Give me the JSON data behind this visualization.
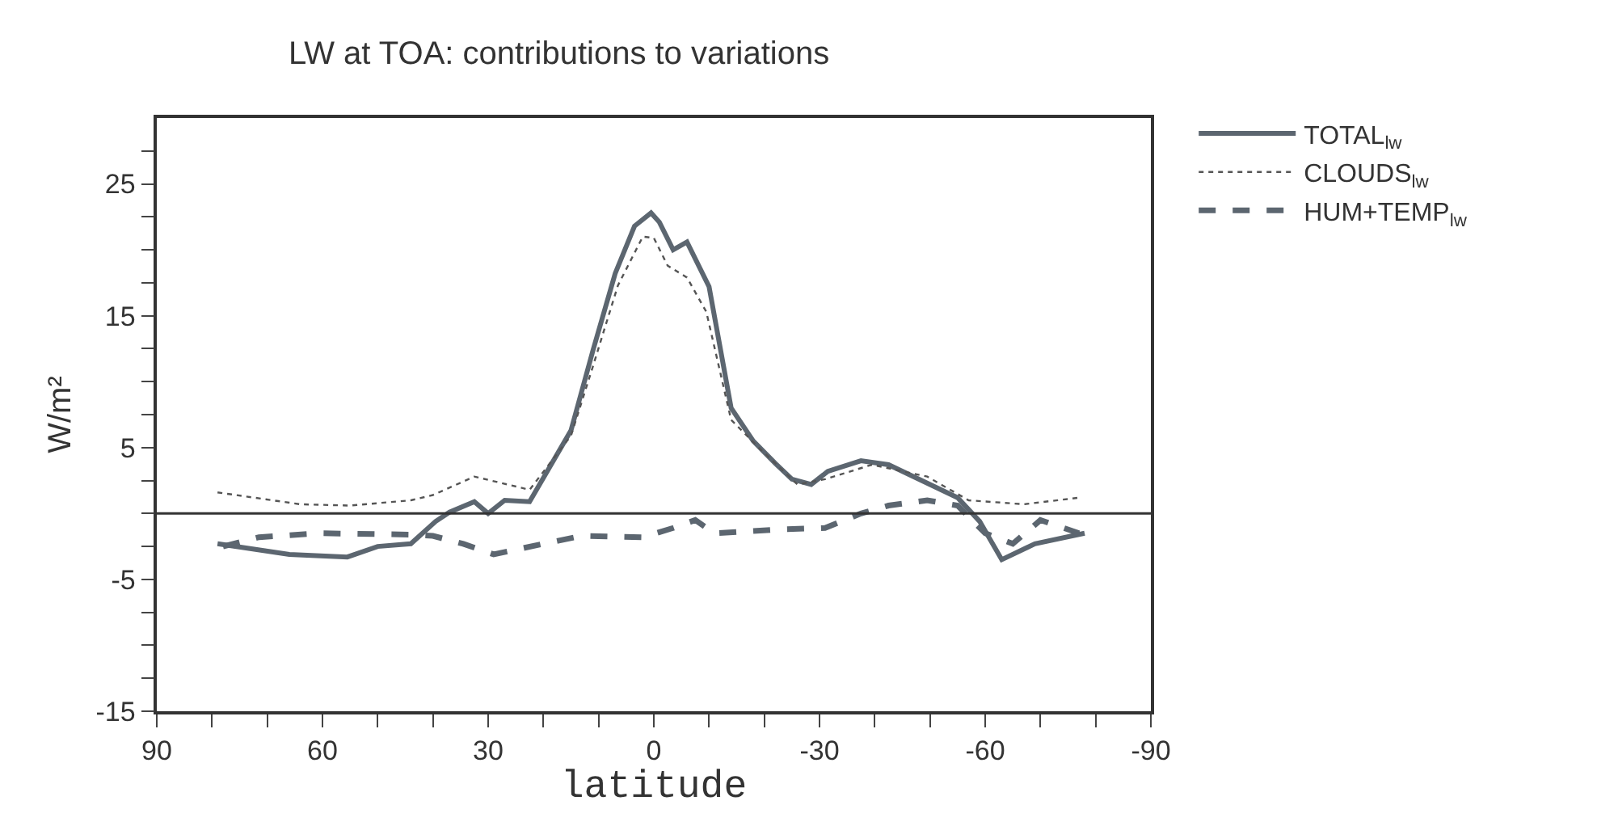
{
  "chart_data": {
    "type": "line",
    "title": "LW at TOA: contributions to variations",
    "xlabel": "latitude",
    "ylabel": "W/m²",
    "xlim": [
      90,
      -90
    ],
    "xticks": [
      90,
      {
        "value": 80,
        "label": null
      },
      {
        "value": 70,
        "label": null
      },
      60,
      {
        "value": 50,
        "label": null
      },
      {
        "value": 40,
        "label": null
      },
      30,
      {
        "value": 20,
        "label": null
      },
      {
        "value": 10,
        "label": null
      },
      0,
      {
        "value": -10,
        "label": null
      },
      {
        "value": -20,
        "label": null
      },
      -30,
      {
        "value": -40,
        "label": null
      },
      {
        "value": -50,
        "label": null
      },
      -60,
      {
        "value": -70,
        "label": null
      },
      {
        "value": -80,
        "label": null
      },
      -90
    ],
    "ylim": [
      -15,
      30
    ],
    "yticks": [
      -15,
      {
        "value": -12.5,
        "label": null
      },
      {
        "value": -10,
        "label": null
      },
      {
        "value": -7.5,
        "label": null
      },
      -5,
      {
        "value": -2.5,
        "label": null
      },
      {
        "value": 0,
        "label": null
      },
      {
        "value": 2.5,
        "label": null
      },
      5,
      {
        "value": 7.5,
        "label": null
      },
      {
        "value": 10,
        "label": null
      },
      {
        "value": 12.5,
        "label": null
      },
      15,
      {
        "value": 17.5,
        "label": null
      },
      {
        "value": 20,
        "label": null
      },
      {
        "value": 22.5,
        "label": null
      },
      25,
      {
        "value": 27.5,
        "label": null
      }
    ],
    "legend": "top right",
    "marker": "none",
    "ref_lines": [
      {
        "axis": "y",
        "value": 0,
        "color": "#333333",
        "line_style": "solid"
      }
    ],
    "series": [
      {
        "name": "TOTAL$_{lw}$",
        "color": "#5c6670",
        "line_style": "solid",
        "x": [
          79,
          66,
          55.5,
          50,
          44,
          39.5,
          37,
          32.5,
          30,
          27,
          22.5,
          15,
          11,
          7,
          3.5,
          0.5,
          -1,
          -3.5,
          -6,
          -10,
          -14,
          -18,
          -22,
          -25,
          -28.5,
          -31.5,
          -37.5,
          -42.5,
          -55,
          -59,
          -63,
          -69,
          -78
        ],
        "values": [
          -2.3,
          -3.1,
          -3.3,
          -2.5,
          -2.3,
          -0.6,
          0.1,
          0.9,
          0,
          1,
          0.9,
          6.3,
          12.4,
          18.2,
          21.8,
          22.8,
          22.1,
          20,
          20.6,
          17.2,
          8,
          5.5,
          3.8,
          2.6,
          2.2,
          3.2,
          4,
          3.7,
          1.2,
          -0.6,
          -3.5,
          -2.3,
          -1.5
        ]
      },
      {
        "name": "CLOUDS$_{lw}$",
        "color": "#555555",
        "line_style": "dotted",
        "x": [
          79,
          64,
          55,
          44,
          40,
          32.5,
          28.5,
          22.5,
          15,
          11,
          6.5,
          2,
          0,
          -2.5,
          -6,
          -9.5,
          -14,
          -19,
          -26,
          -31,
          -39.5,
          -49.5,
          -57,
          -67,
          -77
        ],
        "values": [
          1.6,
          0.7,
          0.6,
          1,
          1.4,
          2.8,
          2.4,
          1.8,
          5.9,
          11.2,
          17.3,
          21,
          20.9,
          18.8,
          17.9,
          15.3,
          7.1,
          5,
          2.2,
          2.6,
          3.7,
          2.8,
          1,
          0.7,
          1.2
        ]
      },
      {
        "name": "HUM+TEMP$_{lw}$",
        "color": "#5c6670",
        "line_style": "dashed",
        "x": [
          78,
          71.5,
          60.5,
          44,
          40,
          34.5,
          29,
          20,
          13,
          2,
          -3.5,
          -7.5,
          -11,
          -23,
          -31,
          -37.5,
          -42.5,
          -49.5,
          -55,
          -60,
          -65,
          -70,
          -77
        ],
        "values": [
          -2.5,
          -1.8,
          -1.5,
          -1.6,
          -1.7,
          -2.3,
          -3.1,
          -2.3,
          -1.7,
          -1.8,
          -1.1,
          -0.5,
          -1.5,
          -1.2,
          -1.1,
          0,
          0.6,
          1,
          0.6,
          -1.5,
          -2.3,
          -0.5,
          -1.5
        ]
      }
    ]
  }
}
